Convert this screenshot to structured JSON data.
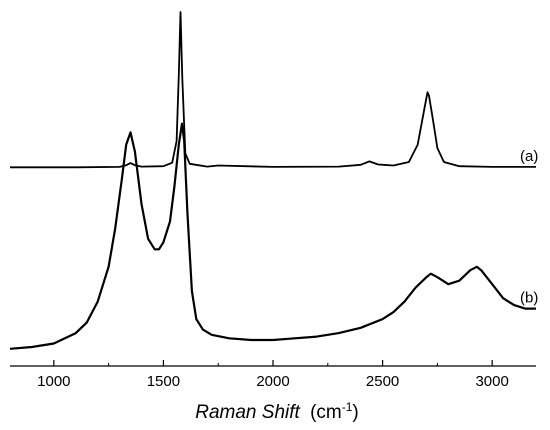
{
  "chart_data": {
    "type": "line",
    "title": "",
    "xlabel_italic": "Raman Shift",
    "xlabel_unit_base": "(cm",
    "xlabel_unit_sup": "-1",
    "xlabel_unit_end": ")",
    "ylabel": "",
    "xlim": [
      800,
      3200
    ],
    "ylim": [
      0,
      1
    ],
    "x_ticks": [
      1000,
      1500,
      2000,
      2500,
      3000
    ],
    "x_tick_labels": [
      "1000",
      "1500",
      "2000",
      "2500",
      "3000"
    ],
    "y_ticks": [],
    "grid": false,
    "legend": "none",
    "line_color": "#000000",
    "series": [
      {
        "label": "(a)",
        "x": [
          800,
          1100,
          1300,
          1330,
          1350,
          1370,
          1400,
          1500,
          1540,
          1560,
          1570,
          1578,
          1586,
          1600,
          1620,
          1700,
          1750,
          2000,
          2300,
          2400,
          2440,
          2480,
          2550,
          2620,
          2660,
          2690,
          2705,
          2712,
          2730,
          2750,
          2780,
          2850,
          3000,
          3200
        ],
        "y": [
          0.535,
          0.535,
          0.536,
          0.541,
          0.547,
          0.541,
          0.537,
          0.538,
          0.548,
          0.61,
          0.8,
          0.98,
          0.79,
          0.575,
          0.545,
          0.537,
          0.54,
          0.536,
          0.537,
          0.542,
          0.552,
          0.543,
          0.54,
          0.55,
          0.6,
          0.7,
          0.75,
          0.74,
          0.67,
          0.59,
          0.55,
          0.538,
          0.536,
          0.536
        ]
      },
      {
        "label": "(b)",
        "x": [
          800,
          900,
          1000,
          1100,
          1150,
          1200,
          1250,
          1280,
          1310,
          1330,
          1350,
          1370,
          1400,
          1430,
          1460,
          1480,
          1500,
          1530,
          1550,
          1570,
          1585,
          1595,
          1610,
          1630,
          1650,
          1680,
          1720,
          1800,
          1900,
          2000,
          2100,
          2200,
          2300,
          2400,
          2500,
          2550,
          2600,
          2650,
          2700,
          2720,
          2750,
          2800,
          2850,
          2900,
          2930,
          2950,
          3000,
          3050,
          3100,
          3150,
          3200
        ],
        "y": [
          0.015,
          0.02,
          0.03,
          0.06,
          0.09,
          0.15,
          0.25,
          0.36,
          0.5,
          0.6,
          0.635,
          0.58,
          0.43,
          0.33,
          0.3,
          0.3,
          0.32,
          0.38,
          0.48,
          0.6,
          0.66,
          0.61,
          0.4,
          0.18,
          0.1,
          0.07,
          0.055,
          0.045,
          0.04,
          0.04,
          0.045,
          0.05,
          0.06,
          0.075,
          0.1,
          0.12,
          0.15,
          0.19,
          0.22,
          0.23,
          0.22,
          0.2,
          0.21,
          0.24,
          0.25,
          0.24,
          0.2,
          0.16,
          0.14,
          0.13,
          0.13
        ]
      }
    ]
  }
}
